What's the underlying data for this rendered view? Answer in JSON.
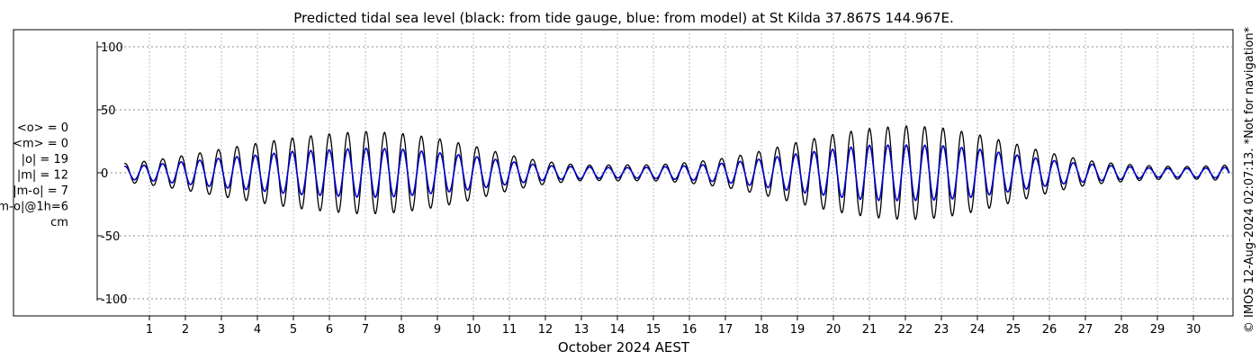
{
  "chart_data": {
    "type": "line",
    "title": "Predicted tidal sea level (black: from tide gauge, blue: from model) at St Kilda 37.867S 144.967E.",
    "xlabel": "October 2024 AEST",
    "ylabel": "",
    "xlim": [
      0.25,
      31.0
    ],
    "ylim": [
      -105,
      105
    ],
    "yticks": [
      100,
      50,
      0,
      -50,
      -100
    ],
    "xticks": [
      1,
      2,
      3,
      4,
      5,
      6,
      7,
      8,
      9,
      10,
      11,
      12,
      13,
      14,
      15,
      16,
      17,
      18,
      19,
      20,
      21,
      22,
      23,
      24,
      25,
      26,
      27,
      28,
      29,
      30
    ],
    "grid": true,
    "stats": [
      "<o> = 0",
      "<m> = 0",
      "|o| = 19",
      "|m| = 12",
      "|m-o| = 7",
      "|m-o|@1h=6",
      "cm"
    ],
    "credit": "© IMOS 12-Aug-2024 02:07:13. *Not for navigation*",
    "tide_periods_hours": [
      12.42,
      12.0
    ],
    "series": [
      {
        "color": "#000000",
        "amp_semidiurnal": [
          18,
          22,
          26,
          30,
          33,
          36,
          38,
          40,
          40,
          39,
          35,
          28,
          22,
          18,
          17,
          16,
          18,
          21,
          26,
          32,
          37,
          42,
          45,
          46,
          44,
          40,
          33,
          26,
          20,
          15,
          13
        ],
        "amp_spring_neap": [
          4,
          5,
          6,
          7,
          8,
          9,
          10,
          11,
          11,
          10,
          9,
          7,
          5,
          4,
          3,
          3,
          4,
          5,
          7,
          9,
          11,
          12,
          13,
          13,
          12,
          10,
          8,
          6,
          4,
          3,
          3
        ]
      },
      {
        "color": "#0000cc",
        "amp_semidiurnal": [
          12,
          14,
          17,
          19,
          21,
          23,
          24,
          25,
          25,
          24,
          22,
          18,
          14,
          12,
          11,
          11,
          12,
          14,
          17,
          21,
          24,
          27,
          28,
          29,
          28,
          25,
          21,
          17,
          13,
          10,
          9
        ],
        "amp_spring_neap": [
          2,
          3,
          3,
          4,
          4,
          5,
          5,
          6,
          6,
          5,
          5,
          4,
          3,
          2,
          2,
          2,
          2,
          3,
          4,
          5,
          6,
          7,
          7,
          7,
          7,
          6,
          5,
          3,
          2,
          2,
          2
        ]
      }
    ]
  }
}
